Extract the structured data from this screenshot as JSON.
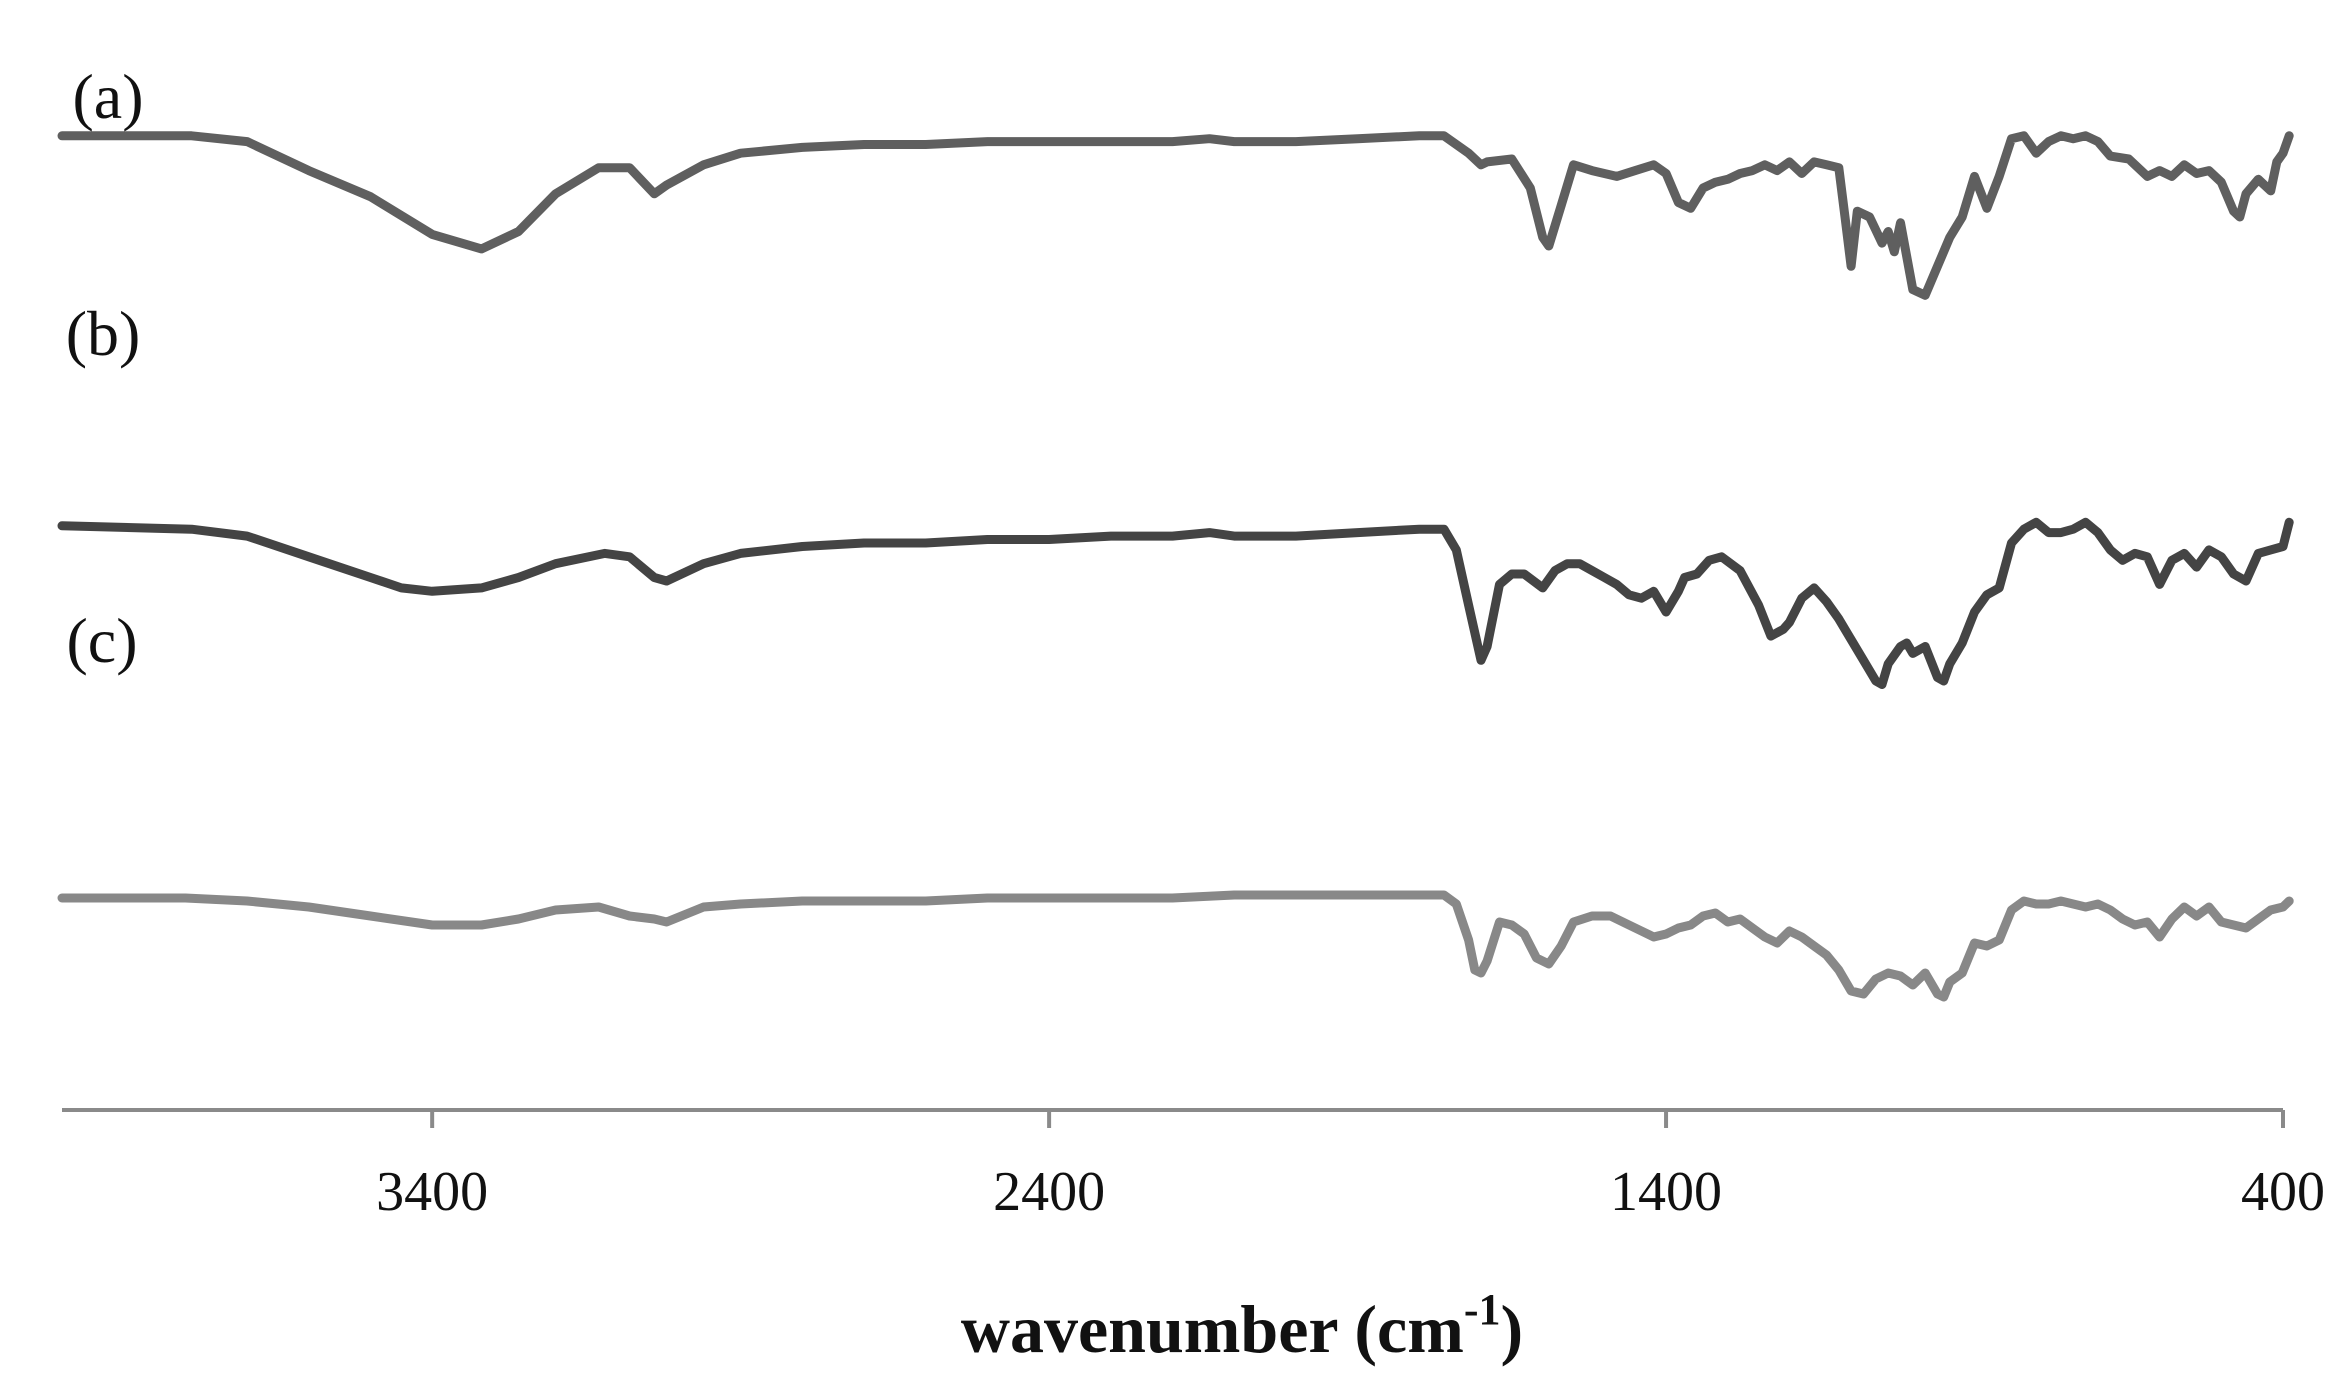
{
  "chart_data": {
    "type": "line",
    "title": "",
    "xlabel": "wavenumber (cm",
    "xlabel_sup": "-1",
    "xlabel_close": ")",
    "ylabel": "",
    "xlim": [
      4000,
      400
    ],
    "x_reversed": true,
    "ylim": [
      0,
      100
    ],
    "grid": false,
    "legend": "none",
    "x_ticks": [
      3400,
      2400,
      1400,
      400
    ],
    "x_tick_labels": [
      "3400",
      "2400",
      "1400",
      "400"
    ],
    "series": [
      {
        "name": "(a)",
        "color": "#5f5f5f",
        "points": [
          [
            4000,
            98
          ],
          [
            3790,
            98
          ],
          [
            3700,
            96
          ],
          [
            3600,
            86
          ],
          [
            3500,
            77
          ],
          [
            3400,
            64
          ],
          [
            3320,
            59
          ],
          [
            3260,
            65
          ],
          [
            3200,
            78
          ],
          [
            3130,
            87
          ],
          [
            3080,
            87
          ],
          [
            3040,
            78
          ],
          [
            3020,
            81
          ],
          [
            2960,
            88
          ],
          [
            2900,
            92
          ],
          [
            2800,
            94
          ],
          [
            2700,
            95
          ],
          [
            2600,
            95
          ],
          [
            2500,
            96
          ],
          [
            2400,
            96
          ],
          [
            2300,
            96
          ],
          [
            2200,
            96
          ],
          [
            2140,
            97
          ],
          [
            2100,
            96
          ],
          [
            2000,
            96
          ],
          [
            1900,
            97
          ],
          [
            1800,
            98
          ],
          [
            1760,
            98
          ],
          [
            1720,
            92
          ],
          [
            1700,
            88
          ],
          [
            1690,
            89
          ],
          [
            1650,
            90
          ],
          [
            1620,
            80
          ],
          [
            1600,
            63
          ],
          [
            1590,
            60
          ],
          [
            1570,
            74
          ],
          [
            1550,
            88
          ],
          [
            1520,
            86
          ],
          [
            1480,
            84
          ],
          [
            1450,
            86
          ],
          [
            1420,
            88
          ],
          [
            1400,
            85
          ],
          [
            1380,
            75
          ],
          [
            1360,
            73
          ],
          [
            1340,
            80
          ],
          [
            1320,
            82
          ],
          [
            1300,
            83
          ],
          [
            1280,
            85
          ],
          [
            1260,
            86
          ],
          [
            1240,
            88
          ],
          [
            1220,
            86
          ],
          [
            1200,
            89
          ],
          [
            1180,
            85
          ],
          [
            1160,
            89
          ],
          [
            1140,
            88
          ],
          [
            1120,
            87
          ],
          [
            1110,
            70
          ],
          [
            1100,
            53
          ],
          [
            1090,
            72
          ],
          [
            1070,
            70
          ],
          [
            1050,
            61
          ],
          [
            1040,
            65
          ],
          [
            1030,
            58
          ],
          [
            1020,
            68
          ],
          [
            1000,
            45
          ],
          [
            980,
            43
          ],
          [
            960,
            53
          ],
          [
            940,
            63
          ],
          [
            920,
            70
          ],
          [
            900,
            84
          ],
          [
            880,
            73
          ],
          [
            860,
            84
          ],
          [
            840,
            97
          ],
          [
            820,
            98
          ],
          [
            800,
            92
          ],
          [
            780,
            96
          ],
          [
            760,
            98
          ],
          [
            740,
            97
          ],
          [
            720,
            98
          ],
          [
            700,
            96
          ],
          [
            680,
            91
          ],
          [
            650,
            90
          ],
          [
            620,
            84
          ],
          [
            600,
            86
          ],
          [
            580,
            84
          ],
          [
            560,
            88
          ],
          [
            540,
            85
          ],
          [
            520,
            86
          ],
          [
            500,
            82
          ],
          [
            480,
            72
          ],
          [
            470,
            70
          ],
          [
            460,
            78
          ],
          [
            440,
            83
          ],
          [
            420,
            79
          ],
          [
            410,
            89
          ],
          [
            400,
            92
          ],
          [
            390,
            98
          ]
        ]
      },
      {
        "name": "(b)",
        "color": "#444444",
        "points": [
          [
            4000,
            65
          ],
          [
            3790,
            64
          ],
          [
            3700,
            62
          ],
          [
            3600,
            56
          ],
          [
            3500,
            50
          ],
          [
            3450,
            47
          ],
          [
            3400,
            46
          ],
          [
            3320,
            47
          ],
          [
            3260,
            50
          ],
          [
            3200,
            54
          ],
          [
            3120,
            57
          ],
          [
            3080,
            56
          ],
          [
            3040,
            50
          ],
          [
            3020,
            49
          ],
          [
            2960,
            54
          ],
          [
            2900,
            57
          ],
          [
            2800,
            59
          ],
          [
            2700,
            60
          ],
          [
            2600,
            60
          ],
          [
            2500,
            61
          ],
          [
            2400,
            61
          ],
          [
            2300,
            62
          ],
          [
            2200,
            62
          ],
          [
            2140,
            63
          ],
          [
            2100,
            62
          ],
          [
            2000,
            62
          ],
          [
            1900,
            63
          ],
          [
            1800,
            64
          ],
          [
            1760,
            64
          ],
          [
            1740,
            58
          ],
          [
            1720,
            42
          ],
          [
            1710,
            34
          ],
          [
            1700,
            26
          ],
          [
            1690,
            30
          ],
          [
            1670,
            48
          ],
          [
            1650,
            51
          ],
          [
            1630,
            51
          ],
          [
            1600,
            47
          ],
          [
            1580,
            52
          ],
          [
            1560,
            54
          ],
          [
            1540,
            54
          ],
          [
            1520,
            52
          ],
          [
            1500,
            50
          ],
          [
            1480,
            48
          ],
          [
            1460,
            45
          ],
          [
            1440,
            44
          ],
          [
            1420,
            46
          ],
          [
            1400,
            40
          ],
          [
            1380,
            46
          ],
          [
            1370,
            50
          ],
          [
            1350,
            51
          ],
          [
            1330,
            55
          ],
          [
            1310,
            56
          ],
          [
            1280,
            52
          ],
          [
            1250,
            42
          ],
          [
            1230,
            33
          ],
          [
            1210,
            35
          ],
          [
            1200,
            37
          ],
          [
            1180,
            44
          ],
          [
            1160,
            47
          ],
          [
            1140,
            43
          ],
          [
            1120,
            38
          ],
          [
            1100,
            32
          ],
          [
            1080,
            26
          ],
          [
            1060,
            20
          ],
          [
            1050,
            19
          ],
          [
            1040,
            25
          ],
          [
            1020,
            30
          ],
          [
            1010,
            31
          ],
          [
            1000,
            28
          ],
          [
            980,
            30
          ],
          [
            960,
            21
          ],
          [
            950,
            20
          ],
          [
            940,
            25
          ],
          [
            920,
            31
          ],
          [
            900,
            40
          ],
          [
            880,
            45
          ],
          [
            860,
            47
          ],
          [
            840,
            60
          ],
          [
            820,
            64
          ],
          [
            800,
            66
          ],
          [
            780,
            63
          ],
          [
            760,
            63
          ],
          [
            740,
            64
          ],
          [
            720,
            66
          ],
          [
            700,
            63
          ],
          [
            680,
            58
          ],
          [
            660,
            55
          ],
          [
            640,
            57
          ],
          [
            620,
            56
          ],
          [
            600,
            48
          ],
          [
            580,
            55
          ],
          [
            560,
            57
          ],
          [
            540,
            53
          ],
          [
            520,
            58
          ],
          [
            500,
            56
          ],
          [
            480,
            51
          ],
          [
            460,
            49
          ],
          [
            440,
            57
          ],
          [
            420,
            58
          ],
          [
            400,
            59
          ],
          [
            390,
            66
          ]
        ]
      },
      {
        "name": "(c)",
        "color": "#888888",
        "points": [
          [
            4000,
            34
          ],
          [
            3800,
            34
          ],
          [
            3700,
            33
          ],
          [
            3600,
            31
          ],
          [
            3500,
            28
          ],
          [
            3400,
            25
          ],
          [
            3320,
            25
          ],
          [
            3260,
            27
          ],
          [
            3200,
            30
          ],
          [
            3130,
            31
          ],
          [
            3080,
            28
          ],
          [
            3040,
            27
          ],
          [
            3020,
            26
          ],
          [
            2960,
            31
          ],
          [
            2900,
            32
          ],
          [
            2800,
            33
          ],
          [
            2700,
            33
          ],
          [
            2600,
            33
          ],
          [
            2500,
            34
          ],
          [
            2400,
            34
          ],
          [
            2300,
            34
          ],
          [
            2200,
            34
          ],
          [
            2100,
            35
          ],
          [
            2000,
            35
          ],
          [
            1900,
            35
          ],
          [
            1800,
            35
          ],
          [
            1760,
            35
          ],
          [
            1740,
            32
          ],
          [
            1720,
            20
          ],
          [
            1710,
            10
          ],
          [
            1700,
            9
          ],
          [
            1690,
            13
          ],
          [
            1670,
            26
          ],
          [
            1650,
            25
          ],
          [
            1630,
            22
          ],
          [
            1610,
            14
          ],
          [
            1590,
            12
          ],
          [
            1570,
            18
          ],
          [
            1550,
            26
          ],
          [
            1520,
            28
          ],
          [
            1490,
            28
          ],
          [
            1460,
            25
          ],
          [
            1440,
            23
          ],
          [
            1420,
            21
          ],
          [
            1400,
            22
          ],
          [
            1380,
            24
          ],
          [
            1360,
            25
          ],
          [
            1340,
            28
          ],
          [
            1320,
            29
          ],
          [
            1300,
            26
          ],
          [
            1280,
            27
          ],
          [
            1260,
            24
          ],
          [
            1240,
            21
          ],
          [
            1220,
            19
          ],
          [
            1200,
            23
          ],
          [
            1180,
            21
          ],
          [
            1160,
            18
          ],
          [
            1140,
            15
          ],
          [
            1120,
            10
          ],
          [
            1100,
            3
          ],
          [
            1080,
            2
          ],
          [
            1060,
            7
          ],
          [
            1040,
            9
          ],
          [
            1020,
            8
          ],
          [
            1000,
            5
          ],
          [
            980,
            9
          ],
          [
            960,
            2
          ],
          [
            950,
            1
          ],
          [
            940,
            6
          ],
          [
            920,
            9
          ],
          [
            900,
            19
          ],
          [
            880,
            18
          ],
          [
            860,
            20
          ],
          [
            840,
            30
          ],
          [
            820,
            33
          ],
          [
            800,
            32
          ],
          [
            780,
            32
          ],
          [
            760,
            33
          ],
          [
            740,
            32
          ],
          [
            720,
            31
          ],
          [
            700,
            32
          ],
          [
            680,
            30
          ],
          [
            660,
            27
          ],
          [
            640,
            25
          ],
          [
            620,
            26
          ],
          [
            600,
            21
          ],
          [
            580,
            27
          ],
          [
            560,
            31
          ],
          [
            540,
            28
          ],
          [
            520,
            31
          ],
          [
            500,
            26
          ],
          [
            480,
            25
          ],
          [
            460,
            24
          ],
          [
            440,
            27
          ],
          [
            420,
            30
          ],
          [
            400,
            31
          ],
          [
            390,
            33
          ]
        ]
      }
    ]
  }
}
